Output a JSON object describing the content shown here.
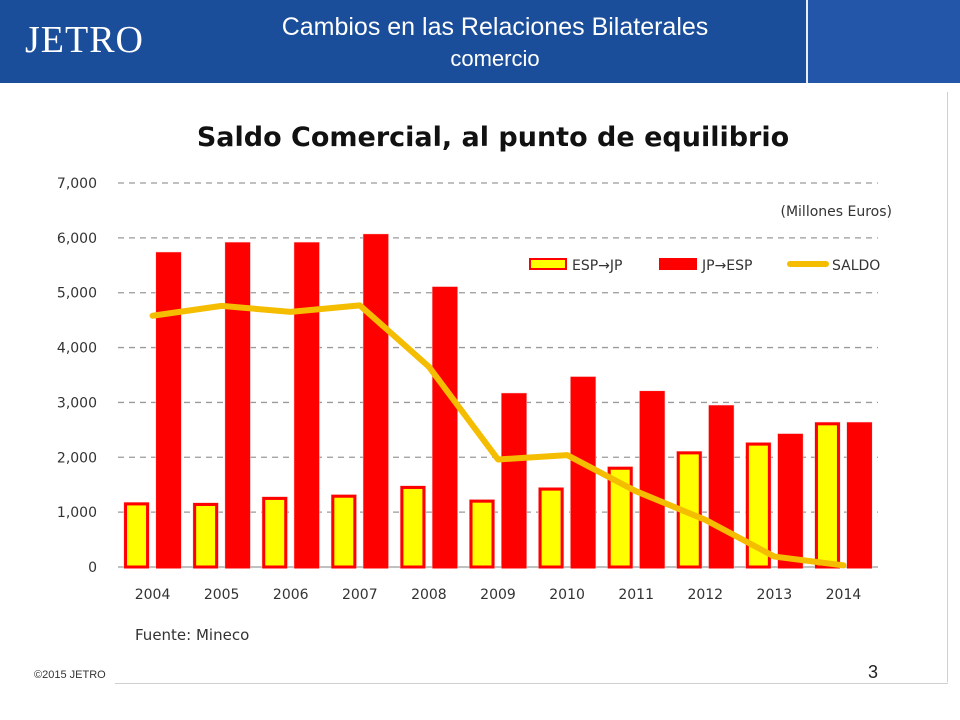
{
  "header": {
    "logo_text": "JETRO",
    "title": "Cambios en las Relaciones Bilaterales",
    "subtitle": "comercio"
  },
  "footer": {
    "copyright": "©2015 JETRO",
    "page_number": "3"
  },
  "colors": {
    "header_bg": "#1a4e9a",
    "esp_jp": "#ffff00",
    "jp_esp": "#ff0000",
    "bar_border": "#ff0000",
    "saldo": "#f5bd00"
  },
  "chart_data": {
    "type": "bar",
    "title": "Saldo Comercial, al punto de equilibrio",
    "unit_label": "(Millones Euros)",
    "source": "Fuente: Mineco",
    "categories": [
      "2004",
      "2005",
      "2006",
      "2007",
      "2008",
      "2009",
      "2010",
      "2011",
      "2012",
      "2013",
      "2014"
    ],
    "ylim": [
      0,
      7000
    ],
    "yticks": [
      "0",
      "1,000",
      "2,000",
      "3,000",
      "4,000",
      "5,000",
      "6,000",
      "7,000"
    ],
    "ytick_values": [
      0,
      1000,
      2000,
      3000,
      4000,
      5000,
      6000,
      7000
    ],
    "grid": true,
    "legend_position": "top-right",
    "series": [
      {
        "name": "ESP→JP",
        "kind": "bar",
        "color": "#ffff00",
        "values": [
          1150,
          1140,
          1250,
          1290,
          1450,
          1200,
          1420,
          1800,
          2080,
          2240,
          2610
        ]
      },
      {
        "name": "JP→ESP",
        "kind": "bar",
        "color": "#ff0000",
        "values": [
          5710,
          5890,
          5890,
          6040,
          5080,
          3140,
          3440,
          3180,
          2920,
          2400,
          2610
        ]
      },
      {
        "name": "SALDO",
        "kind": "line",
        "color": "#f5bd00",
        "values": [
          4580,
          4760,
          4650,
          4770,
          3650,
          1960,
          2040,
          1380,
          860,
          190,
          30
        ]
      }
    ]
  }
}
